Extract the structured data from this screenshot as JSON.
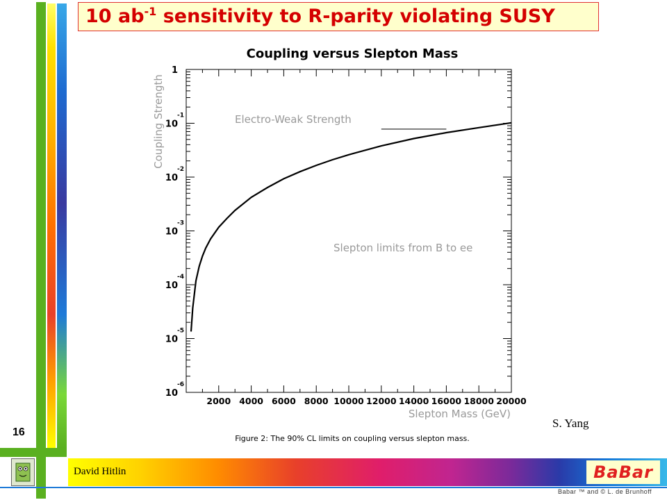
{
  "slide": {
    "title_main": "10 ab",
    "title_sup": "-1",
    "title_rest": " sensitivity to R-parity violating SUSY",
    "page_number": "16",
    "credit": "S. Yang",
    "author": "David Hitlin",
    "logo": "BaBar",
    "copyright": "Babar ™ and © L. de Brunhoff",
    "caption": "Figure 2: The 90% CL limits on coupling versus slepton mass.",
    "colors": {
      "title_red": "#d40000",
      "title_bg": "#ffffcc",
      "bar_green": "#5ab020",
      "bar_yellow": "#ffff00",
      "bar_orange": "#ff8c00",
      "bar_blue": "#1e7ad8"
    }
  },
  "chart_data": {
    "type": "line",
    "title": "Coupling versus Slepton Mass",
    "xlabel": "Slepton Mass (GeV)",
    "ylabel": "Coupling Strength",
    "x_ticks": [
      "2000",
      "4000",
      "6000",
      "8000",
      "10000",
      "12000",
      "14000",
      "16000",
      "18000",
      "20000"
    ],
    "y_ticks": [
      {
        "value": 1,
        "base": "1",
        "exp": ""
      },
      {
        "value": 0.1,
        "base": "10",
        "exp": "-1"
      },
      {
        "value": 0.01,
        "base": "10",
        "exp": "-2"
      },
      {
        "value": 0.001,
        "base": "10",
        "exp": "-3"
      },
      {
        "value": 0.0001,
        "base": "10",
        "exp": "-4"
      },
      {
        "value": 1e-05,
        "base": "10",
        "exp": "-5"
      },
      {
        "value": 1e-06,
        "base": "10",
        "exp": "-6"
      }
    ],
    "xlim": [
      0,
      20000
    ],
    "ylim": [
      1e-06,
      1
    ],
    "y_scale": "log",
    "grid": false,
    "series": [
      {
        "values_x": [
          300,
          400,
          600,
          800,
          1000,
          1200,
          1500,
          2000,
          2500,
          3000,
          4000,
          5000,
          6000,
          7000,
          8000,
          9000,
          10000,
          12000,
          14000,
          16000,
          18000,
          20000
        ],
        "values_y": [
          1.35e-05,
          3.7e-05,
          0.000118,
          0.00022,
          0.00034,
          0.00048,
          0.00071,
          0.00117,
          0.0017,
          0.0024,
          0.0042,
          0.0064,
          0.0093,
          0.0126,
          0.0165,
          0.021,
          0.026,
          0.038,
          0.052,
          0.067,
          0.083,
          0.102
        ]
      }
    ],
    "reference_line": {
      "x_start": 12000,
      "x_end": 16000,
      "y": 0.078
    },
    "annotations": [
      "Electro-Weak Strength",
      "Slepton limits from B to ee"
    ]
  }
}
